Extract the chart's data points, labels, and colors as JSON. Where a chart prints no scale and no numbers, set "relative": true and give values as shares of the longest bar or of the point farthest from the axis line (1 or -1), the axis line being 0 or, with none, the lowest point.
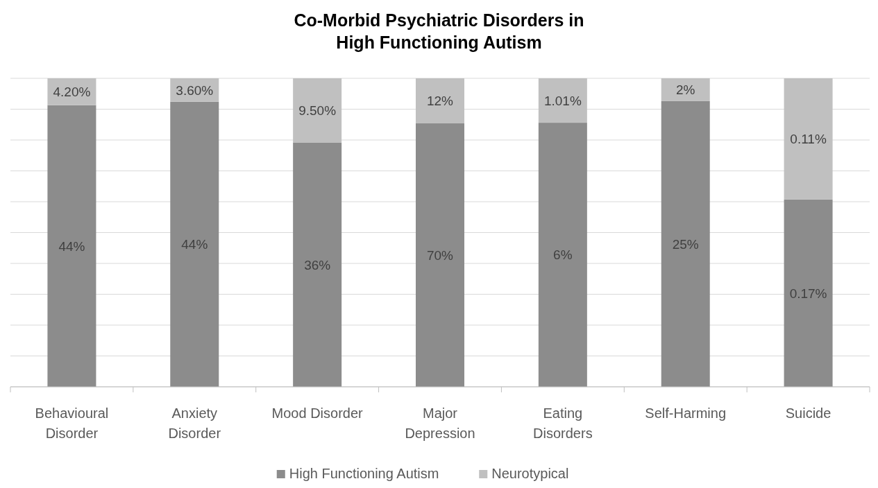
{
  "chart_data": {
    "type": "bar",
    "title": "Co-Morbid Psychiatric Disorders in\nHigh Functioning Autism",
    "categories": [
      "Behavioural Disorder",
      "Anxiety Disorder",
      "Mood Disorder",
      "Major Depression",
      "Eating Disorders",
      "Self-Harming",
      "Suicide"
    ],
    "stacked": true,
    "relative": true,
    "grid": "y",
    "legend": "bottom",
    "series": [
      {
        "name": "High Functioning Autism",
        "color": "#8c8c8c",
        "values": [
          0.913,
          0.924,
          0.791,
          0.854,
          0.856,
          0.926,
          0.607
        ]
      },
      {
        "name": "Neurotypical",
        "color": "#c0c0c0",
        "values": [
          0.087,
          0.076,
          0.209,
          0.146,
          0.144,
          0.074,
          0.393
        ]
      }
    ],
    "annotations": [
      "44%",
      "4.20%",
      "44%",
      "3.60%",
      "36%",
      "9.50%",
      "70%",
      "12%",
      "6%",
      "1.01%",
      "25%",
      "2%",
      "0.17%",
      "0.11%"
    ]
  }
}
